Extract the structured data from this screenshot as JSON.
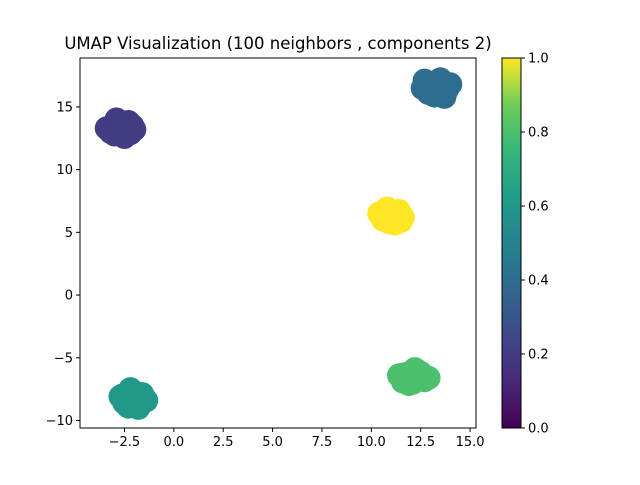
{
  "chart_data": {
    "type": "scatter",
    "title": "UMAP Visualization (100 neighbors , components 2)",
    "xlabel": "",
    "ylabel": "",
    "xlim": [
      -4.75,
      15.3
    ],
    "ylim": [
      -10.6,
      18.9
    ],
    "xticks": [
      -2.5,
      0.0,
      2.5,
      5.0,
      7.5,
      10.0,
      12.5,
      15.0
    ],
    "xtick_labels": [
      "−2.5",
      "0.0",
      "2.5",
      "5.0",
      "7.5",
      "10.0",
      "12.5",
      "15.0"
    ],
    "yticks": [
      -10,
      -5,
      0,
      5,
      10,
      15
    ],
    "ytick_labels": [
      "−10",
      "−5",
      "0",
      "5",
      "10",
      "15"
    ],
    "grid": false,
    "colormap": "viridis",
    "colorbar": {
      "min": 0.0,
      "max": 1.0,
      "ticks": [
        0.0,
        0.2,
        0.4,
        0.6,
        0.8,
        1.0
      ],
      "tick_labels": [
        "0.0",
        "0.2",
        "0.4",
        "0.6",
        "0.8",
        "1.0"
      ]
    },
    "clusters": [
      {
        "value": 0.2,
        "x": [
          -2.7,
          -2.3,
          -3.2,
          -2.0,
          -2.9,
          -2.5,
          -3.4,
          -2.2,
          -2.6,
          -3.0,
          -2.1,
          -2.8
        ],
        "y": [
          13.4,
          13.8,
          13.0,
          13.2,
          14.0,
          12.6,
          13.3,
          12.9,
          13.6,
          12.8,
          13.5,
          13.1
        ]
      },
      {
        "value": 0.4,
        "x": [
          13.3,
          12.8,
          13.8,
          13.2,
          12.6,
          14.0,
          13.5,
          12.9,
          13.7,
          13.1,
          13.4,
          12.7
        ],
        "y": [
          16.6,
          17.0,
          16.3,
          15.9,
          16.5,
          16.8,
          17.2,
          16.1,
          15.8,
          16.9,
          16.2,
          17.1
        ]
      },
      {
        "value": 0.6,
        "x": [
          -2.1,
          -1.6,
          -2.6,
          -2.0,
          -1.4,
          -2.5,
          -2.2,
          -1.8,
          -2.7,
          -1.7,
          -2.3,
          -1.9
        ],
        "y": [
          -8.3,
          -7.9,
          -8.0,
          -8.8,
          -8.4,
          -8.6,
          -7.5,
          -9.0,
          -8.1,
          -8.7,
          -8.9,
          -7.8
        ]
      },
      {
        "value": 0.8,
        "x": [
          12.0,
          12.5,
          11.6,
          12.2,
          12.9,
          11.4,
          12.7,
          11.9,
          12.3,
          11.7,
          12.1,
          12.6
        ],
        "y": [
          -6.5,
          -6.2,
          -6.9,
          -5.9,
          -6.6,
          -6.4,
          -6.8,
          -7.1,
          -6.0,
          -6.3,
          -7.0,
          -6.7
        ]
      },
      {
        "value": 1.0,
        "x": [
          11.0,
          11.4,
          10.6,
          11.2,
          10.8,
          11.6,
          10.4,
          11.1,
          10.9,
          11.3,
          10.7,
          11.5
        ],
        "y": [
          6.3,
          6.7,
          6.0,
          5.7,
          6.9,
          6.2,
          6.5,
          6.1,
          5.8,
          6.6,
          6.4,
          5.9
        ]
      }
    ]
  }
}
